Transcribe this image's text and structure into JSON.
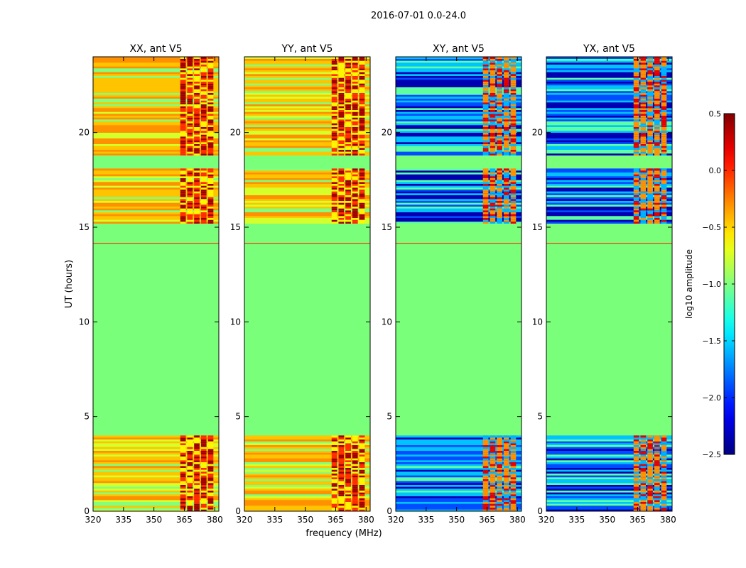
{
  "chart_data": {
    "type": "heatmap",
    "title": "2016-07-01 0.0-24.0",
    "xlabel": "frequency (MHz)",
    "ylabel": "UT (hours)",
    "xlim": [
      320,
      382
    ],
    "ylim": [
      0,
      24
    ],
    "x_ticks": [
      320,
      335,
      350,
      365,
      380
    ],
    "y_ticks": [
      0,
      5,
      10,
      15,
      20
    ],
    "panels": [
      {
        "title": "XX, ant V5",
        "band_profile": "parallel"
      },
      {
        "title": "YY, ant V5",
        "band_profile": "parallel"
      },
      {
        "title": "XY, ant V5",
        "band_profile": "cross"
      },
      {
        "title": "YX, ant V5",
        "band_profile": "cross"
      }
    ],
    "colorbar": {
      "label": "log10 amplitude",
      "range": [
        -2.5,
        0.5
      ],
      "ticks": [
        0.5,
        0.0,
        -0.5,
        -1.0,
        -1.5,
        -2.0,
        -2.5
      ],
      "tick_labels": [
        "0.5",
        "0.0",
        "−0.5",
        "−1.0",
        "−1.5",
        "−2.0",
        "−2.5"
      ],
      "colormap": "jet"
    },
    "background_value": -1.0,
    "data_segments_ut": [
      [
        0.0,
        4.0
      ],
      [
        15.2,
        18.1
      ],
      [
        18.8,
        24.0
      ]
    ],
    "flag_line_ut": [
      14.15
    ],
    "rfi_channel_band_mhz": [
      363,
      380
    ],
    "colors": {
      "background": "#7aff7a",
      "flag_line": "#ff2a00"
    }
  }
}
